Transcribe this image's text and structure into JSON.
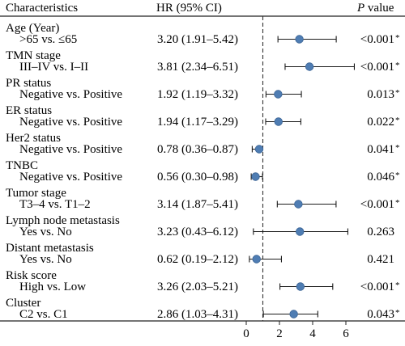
{
  "header": {
    "characteristics": "Characteristics",
    "hr_ci": "HR (95% CI)",
    "p_letter": "P",
    "p_rest": " value"
  },
  "chart_data": {
    "type": "forest",
    "reference_line": 1,
    "xlim": [
      0,
      7
    ],
    "x_ticks": [
      0,
      2,
      4,
      6
    ],
    "rows": [
      {
        "group": "Age (Year)",
        "comparison": ">65 vs. ≤65",
        "hr_text": "3.20 (1.91–5.42)",
        "hr": 3.2,
        "lo": 1.91,
        "hi": 5.42,
        "p_value": "<0.001",
        "significant": true
      },
      {
        "group": "TMN stage",
        "comparison": "III–IV vs. I–II",
        "hr_text": "3.81 (2.34–6.51)",
        "hr": 3.81,
        "lo": 2.34,
        "hi": 6.51,
        "p_value": "<0.001",
        "significant": true
      },
      {
        "group": "PR status",
        "comparison": "Negative vs. Positive",
        "hr_text": "1.92 (1.19–3.32)",
        "hr": 1.92,
        "lo": 1.19,
        "hi": 3.32,
        "p_value": "0.013",
        "significant": true
      },
      {
        "group": "ER status",
        "comparison": "Negative vs. Positive",
        "hr_text": "1.94 (1.17–3.29)",
        "hr": 1.94,
        "lo": 1.17,
        "hi": 3.29,
        "p_value": "0.022",
        "significant": true
      },
      {
        "group": "Her2 status",
        "comparison": "Negative vs. Positive",
        "hr_text": "0.78 (0.36–0.87)",
        "hr": 0.78,
        "lo": 0.36,
        "hi": 0.87,
        "p_value": "0.041",
        "significant": true
      },
      {
        "group": "TNBC",
        "comparison": "Negative vs. Positive",
        "hr_text": "0.56 (0.30–0.98)",
        "hr": 0.56,
        "lo": 0.3,
        "hi": 0.98,
        "p_value": "0.046",
        "significant": true
      },
      {
        "group": "Tumor stage",
        "comparison": "T3–4 vs. T1–2",
        "hr_text": "3.14 (1.87–5.41)",
        "hr": 3.14,
        "lo": 1.87,
        "hi": 5.41,
        "p_value": "<0.001",
        "significant": true
      },
      {
        "group": "Lymph node metastasis",
        "comparison": "Yes vs. No",
        "hr_text": "3.23 (0.43–6.12)",
        "hr": 3.23,
        "lo": 0.43,
        "hi": 6.12,
        "p_value": "0.263",
        "significant": false
      },
      {
        "group": "Distant metastasis",
        "comparison": "Yes vs. No",
        "hr_text": "0.62 (0.19–2.12)",
        "hr": 0.62,
        "lo": 0.19,
        "hi": 2.12,
        "p_value": "0.421",
        "significant": false
      },
      {
        "group": "Risk score",
        "comparison": "High vs. Low",
        "hr_text": "3.26 (2.03–5.21)",
        "hr": 3.26,
        "lo": 2.03,
        "hi": 5.21,
        "p_value": "<0.001",
        "significant": true
      },
      {
        "group": "Cluster",
        "comparison": "C2 vs. C1",
        "hr_text": "2.86 (1.03–4.31)",
        "hr": 2.86,
        "lo": 1.03,
        "hi": 4.31,
        "p_value": "0.043",
        "significant": true
      }
    ],
    "significance_marker": "*",
    "colors": {
      "point": "#4f7db3",
      "point_stroke": "#3a6394",
      "line": "#1a1a1a",
      "rule": "#222222"
    }
  }
}
